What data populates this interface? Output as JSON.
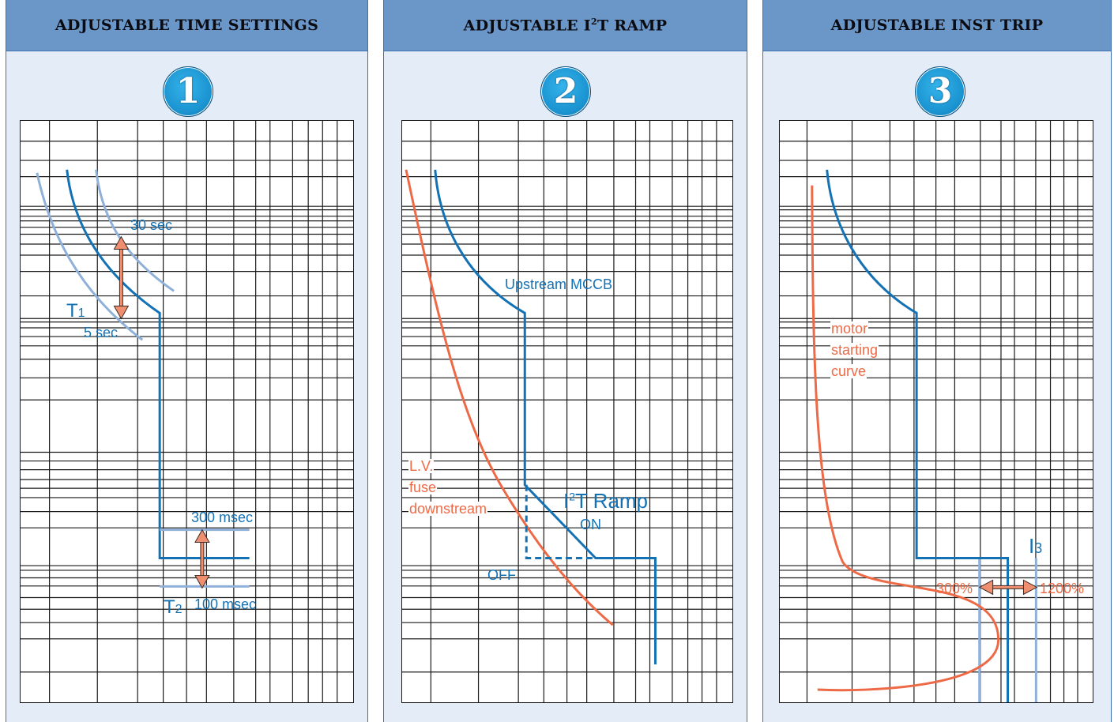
{
  "panels": [
    {
      "title": "ADJUSTABLE TIME SETTINGS",
      "number": "1",
      "labels": {
        "t1": "T",
        "t1_sub": "1",
        "t2": "T",
        "t2_sub": "2",
        "sec30": "30 sec",
        "sec5": "5 sec",
        "ms300": "300 msec",
        "ms100": "100 msec"
      }
    },
    {
      "title_pre": "ADJUSTABLE I",
      "title_sup": "2",
      "title_post": "T RAMP",
      "number": "2",
      "labels": {
        "upstream": "Upstream MCCB",
        "fuse1": "L.V.",
        "fuse2": "fuse",
        "fuse3": "downstream",
        "ramp_pre": "I",
        "ramp_sup": "2",
        "ramp_post": "T Ramp",
        "on": "ON",
        "off": "OFF"
      }
    },
    {
      "title": "ADJUSTABLE INST TRIP",
      "number": "3",
      "labels": {
        "motor1": "motor",
        "motor2": "starting",
        "motor3": "curve",
        "i3": "I",
        "i3_sub": "3",
        "p300": "300%",
        "p1200": "1200%"
      }
    }
  ],
  "colors": {
    "header": "#6b97c8",
    "panel_bg": "#e4edf7",
    "trip_curve": "#1472b4",
    "setting_range": "#8fb0d8",
    "reference_curve": "#ee6a47",
    "grid": "#1a1a1a"
  }
}
